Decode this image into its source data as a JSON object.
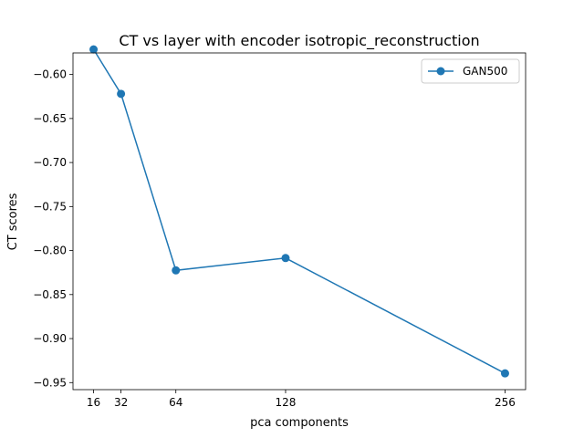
{
  "chart_data": {
    "type": "line",
    "title": "CT vs layer with encoder isotropic_reconstruction",
    "xlabel": "pca components",
    "ylabel": "CT scores",
    "x": [
      16,
      32,
      64,
      128,
      256
    ],
    "x_ticks": [
      "16",
      "32",
      "64",
      "128",
      "256"
    ],
    "y_ticks": [
      "−0.60",
      "−0.65",
      "−0.70",
      "−0.75",
      "−0.80",
      "−0.85",
      "−0.90",
      "−0.95"
    ],
    "xlim": [
      4,
      268
    ],
    "ylim": [
      -0.958,
      -0.5755
    ],
    "series": [
      {
        "name": "GAN500",
        "color": "#1f77b4",
        "marker": "circle",
        "values": [
          -0.5715,
          -0.622,
          -0.8225,
          -0.8085,
          -0.9395
        ]
      }
    ],
    "legend_position": "upper right",
    "grid": false
  }
}
